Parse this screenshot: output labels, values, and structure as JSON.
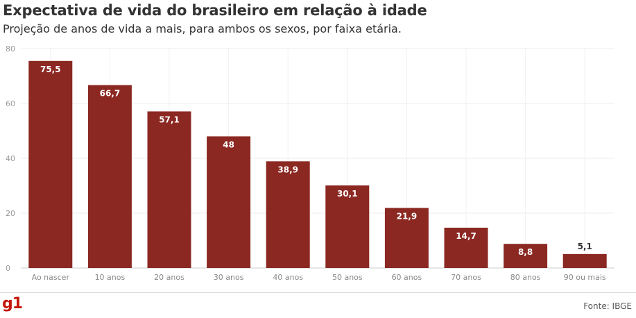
{
  "header": {
    "title": "Expectativa de vida do brasileiro em relação à idade",
    "subtitle": "Projeção de anos de vida a mais, para ambos os sexos, por faixa etária."
  },
  "footer": {
    "logo": "g1",
    "source": "Fonte: IBGE"
  },
  "colors": {
    "bar": "#8b2822",
    "brand": "#c4170c"
  },
  "chart_data": {
    "type": "bar",
    "categories": [
      "Ao nascer",
      "10 anos",
      "20 anos",
      "30 anos",
      "40 anos",
      "50 anos",
      "60 anos",
      "70 anos",
      "80 anos",
      "90 ou mais"
    ],
    "values": [
      75.5,
      66.7,
      57.1,
      48,
      38.9,
      30.1,
      21.9,
      14.7,
      8.8,
      5.1
    ],
    "value_labels": [
      "75,5",
      "66,7",
      "57,1",
      "48",
      "38,9",
      "30,1",
      "21,9",
      "14,7",
      "8,8",
      "5,1"
    ],
    "title": "Expectativa de vida do brasileiro em relação à idade",
    "subtitle": "Projeção de anos de vida a mais, para ambos os sexos, por faixa etária.",
    "xlabel": "",
    "ylabel": "",
    "ylim": [
      0,
      80
    ],
    "yticks": [
      0,
      20,
      40,
      60,
      80
    ],
    "grid": true
  }
}
